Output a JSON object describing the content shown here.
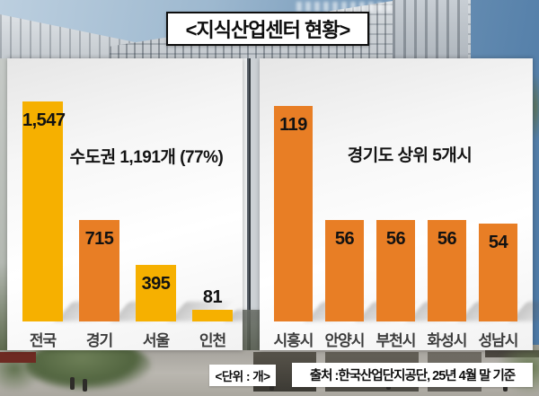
{
  "title": "<지식산업센터 현황>",
  "chart_data": [
    {
      "type": "bar",
      "title": "수도권 1,191개 (77%)",
      "categories": [
        "전국",
        "경기",
        "서울",
        "인천"
      ],
      "values": [
        1547,
        715,
        395,
        81
      ],
      "value_labels": [
        "1,547",
        "715",
        "395",
        "81"
      ],
      "bar_colors": [
        "#F6B000",
        "#E87E25",
        "#F6B000",
        "#F6B000"
      ],
      "ylim": [
        0,
        1547
      ],
      "grid": false,
      "legend": "none"
    },
    {
      "type": "bar",
      "title": "경기도 상위 5개시",
      "categories": [
        "시흥시",
        "안양시",
        "부천시",
        "화성시",
        "성남시"
      ],
      "values": [
        119,
        56,
        56,
        56,
        54
      ],
      "value_labels": [
        "119",
        "56",
        "56",
        "56",
        "54"
      ],
      "bar_colors": [
        "#E87E25",
        "#E87E25",
        "#E87E25",
        "#E87E25",
        "#E87E25"
      ],
      "ylim": [
        0,
        119
      ],
      "grid": false,
      "legend": "none"
    }
  ],
  "footer": {
    "unit_label": "<단위 : 개>",
    "source_label": "출처 :한국산업단지공단, 25년 4월 말 기준"
  },
  "colors": {
    "gold": "#F6B000",
    "orange": "#E87E25",
    "text": "#121212"
  }
}
